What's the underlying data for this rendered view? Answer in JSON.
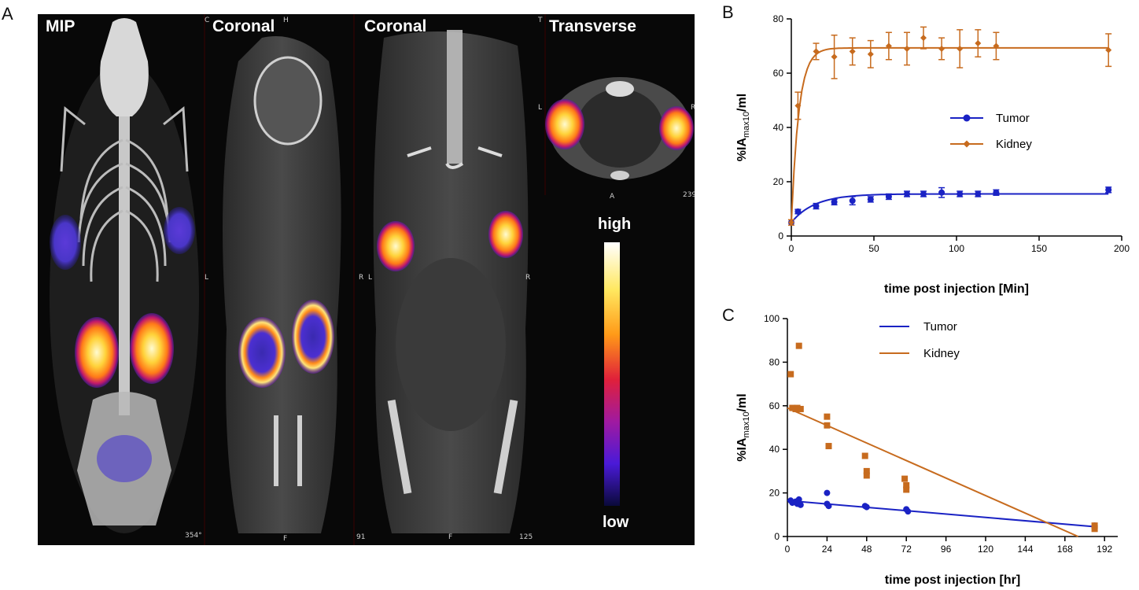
{
  "panels": {
    "a": {
      "letter": "A"
    },
    "b": {
      "letter": "B"
    },
    "c": {
      "letter": "C"
    }
  },
  "imaging": {
    "labels": [
      "MIP",
      "Coronal",
      "Coronal",
      "Transverse"
    ],
    "small_labels": [
      "354°",
      "91",
      "125",
      "239",
      "L",
      "R",
      "L",
      "R",
      "L",
      "R",
      "A",
      "F",
      "F",
      "C",
      "H",
      "T"
    ],
    "colorbar": {
      "high": "high",
      "low": "low"
    }
  },
  "colors": {
    "tumor": "#1a22c4",
    "kidney": "#c76b1e"
  },
  "chart_data": [
    {
      "type": "line",
      "panel": "B",
      "xlabel": "time post injection [Min]",
      "ylabel": "%IA",
      "ylabel_sub": "max10",
      "ylabel_suffix": "/ml",
      "xlim": [
        0,
        200
      ],
      "ylim": [
        0,
        80
      ],
      "xticks": [
        0,
        50,
        100,
        150,
        200
      ],
      "yticks": [
        0,
        20,
        40,
        60,
        80
      ],
      "legend_position": "right",
      "series": [
        {
          "name": "Tumor",
          "color": "#1a22c4",
          "x": [
            0,
            4,
            15,
            26,
            37,
            48,
            59,
            70,
            80,
            91,
            102,
            113,
            124,
            192
          ],
          "y": [
            5,
            9,
            11,
            12.5,
            13,
            13.5,
            14.5,
            15.5,
            15.5,
            16,
            15.5,
            15.5,
            16,
            17
          ],
          "err": [
            0.5,
            0.8,
            1,
            1,
            1.5,
            1,
            1,
            1,
            1,
            1.8,
            1,
            1,
            1,
            1
          ],
          "fit": {
            "plateau": 15.5,
            "k": 0.07
          }
        },
        {
          "name": "Kidney",
          "color": "#c76b1e",
          "x": [
            0,
            4,
            15,
            26,
            37,
            48,
            59,
            70,
            80,
            91,
            102,
            113,
            124,
            192
          ],
          "y": [
            5,
            48,
            68,
            66,
            68,
            67,
            70,
            69,
            73,
            69,
            69,
            71,
            70,
            68.5
          ],
          "err": [
            1,
            5,
            3,
            8,
            5,
            5,
            5,
            6,
            4,
            4,
            7,
            5,
            5,
            6
          ],
          "fit": {
            "plateau": 69.3,
            "k": 0.22
          }
        }
      ]
    },
    {
      "type": "scatter",
      "panel": "C",
      "xlabel": "time post injection [hr]",
      "ylabel": "%IA",
      "ylabel_sub": "max10",
      "ylabel_suffix": "/ml",
      "xlim": [
        0,
        200
      ],
      "ylim": [
        0,
        100
      ],
      "xticks": [
        0,
        24,
        48,
        72,
        96,
        120,
        144,
        168,
        192
      ],
      "yticks": [
        0,
        20,
        40,
        60,
        80,
        100
      ],
      "legend_position": "top",
      "series": [
        {
          "name": "Tumor",
          "color": "#1a22c4",
          "marker": "circle",
          "points": [
            [
              2,
              16.5
            ],
            [
              3,
              15.5
            ],
            [
              5,
              16
            ],
            [
              6,
              15
            ],
            [
              7,
              17
            ],
            [
              8,
              14.5
            ],
            [
              24,
              20
            ],
            [
              24,
              15
            ],
            [
              25,
              14
            ],
            [
              47,
              14
            ],
            [
              48,
              13.5
            ],
            [
              72,
              12.5
            ],
            [
              73,
              11.5
            ],
            [
              186,
              5
            ]
          ],
          "line": {
            "x": [
              0,
              186
            ],
            "y": [
              16.5,
              4.5
            ]
          }
        },
        {
          "name": "Kidney",
          "color": "#c76b1e",
          "marker": "square",
          "points": [
            [
              2,
              74.5
            ],
            [
              3,
              59
            ],
            [
              5,
              58.5
            ],
            [
              6,
              59
            ],
            [
              7,
              87.5
            ],
            [
              8,
              58.5
            ],
            [
              24,
              55
            ],
            [
              24,
              51
            ],
            [
              25,
              41.5
            ],
            [
              47,
              37
            ],
            [
              48,
              30
            ],
            [
              48,
              28
            ],
            [
              71,
              26.5
            ],
            [
              72,
              23.5
            ],
            [
              72,
              21.5
            ],
            [
              186,
              5
            ],
            [
              186,
              3.5
            ]
          ],
          "line": {
            "x": [
              0,
              176
            ],
            "y": [
              59,
              0
            ]
          }
        }
      ]
    }
  ]
}
